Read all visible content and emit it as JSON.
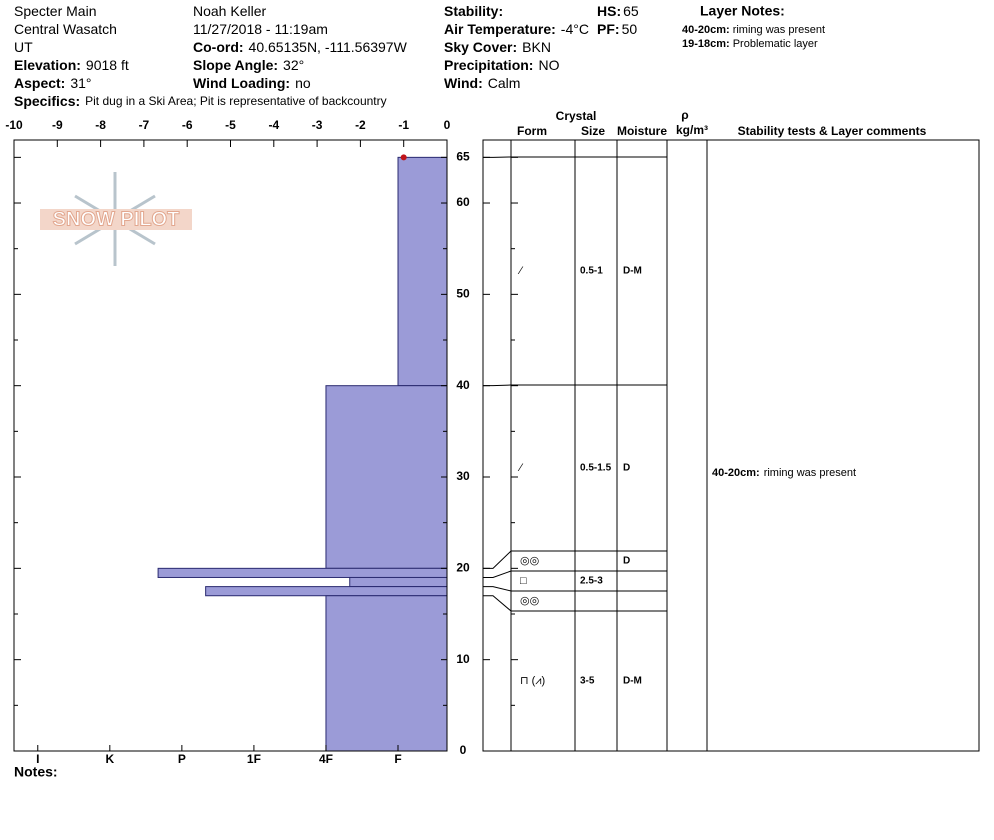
{
  "header": {
    "columns": [
      [
        {
          "value": "Specter Main"
        },
        {
          "value": "Central Wasatch"
        },
        {
          "value": "UT"
        },
        {
          "label": "Elevation:",
          "value": "9018 ft"
        },
        {
          "label": "Aspect:",
          "value": "31°"
        }
      ],
      [
        {
          "value": "Noah Keller"
        },
        {
          "value": "11/27/2018 - 11:19am"
        },
        {
          "label": "Co-ord:",
          "value": "40.65135N, -111.56397W"
        },
        {
          "label": "Slope Angle:",
          "value": "32°"
        },
        {
          "label": "Wind Loading:",
          "value": "no"
        }
      ],
      [
        {
          "label": "Stability:"
        },
        {
          "label": "Air Temperature:",
          "value": "-4°C"
        },
        {
          "label": "Sky Cover:",
          "value": "BKN"
        },
        {
          "label": "Precipitation:",
          "value": "NO"
        },
        {
          "label": "Wind:",
          "value": "Calm"
        }
      ],
      [
        {
          "label": "HS:",
          "value": "65"
        },
        {
          "label": "PF:",
          "value": "50"
        }
      ]
    ],
    "specifics": {
      "label": "Specifics:",
      "value": "Pit dug in a Ski Area; Pit is representative of backcountry"
    },
    "layer_notes": {
      "title": "Layer Notes:",
      "items": [
        {
          "label": "40-20cm:",
          "value": "riming was present"
        },
        {
          "label": "19-18cm:",
          "value": "Problematic layer"
        }
      ]
    }
  },
  "logo": "SNOW PILOT",
  "chart_data": {
    "type": "hardness-profile",
    "ylim": [
      0,
      66.9
    ],
    "yticks": [
      0,
      10,
      20,
      30,
      40,
      50,
      60,
      65
    ],
    "minor_yticks": [
      5,
      15,
      25,
      35,
      45,
      55
    ],
    "xlim": [
      6.33,
      0.32
    ],
    "xticks": [
      {
        "value": 6,
        "label": "I"
      },
      {
        "value": 5,
        "label": "K"
      },
      {
        "value": 4,
        "label": "P"
      },
      {
        "value": 3,
        "label": "1F"
      },
      {
        "value": 2,
        "label": "4F"
      },
      {
        "value": 1,
        "label": "F"
      }
    ],
    "layers": {
      "top": [
        65,
        40,
        20,
        19,
        18,
        17
      ],
      "bottom": [
        40,
        20,
        19,
        18,
        17,
        0
      ],
      "values": [
        1,
        2,
        4.33,
        1.67,
        3.67,
        2
      ]
    },
    "color": "#9b9bd7",
    "temperature": {
      "depth": [
        65
      ],
      "values": [
        -1
      ],
      "color": "#c0141a",
      "xlim": [
        -10,
        0
      ],
      "xticks": [
        -10,
        -9,
        -8,
        -7,
        -6,
        -5,
        -4,
        -3,
        -2,
        -1,
        0
      ]
    },
    "notes_label": "Notes:"
  },
  "table": {
    "header": {
      "crystal": "Crystal",
      "form": "Form",
      "size": "Size",
      "moisture": "Moisture",
      "rho": "ρ",
      "density_unit": "kg/m³",
      "comments": "Stability tests & Layer comments"
    },
    "rows": [
      {
        "form": "⁄",
        "size": "0.5-1",
        "moisture": "D-M"
      },
      {
        "form": "⁄",
        "size": "0.5-1.5",
        "moisture": "D",
        "comment": {
          "label": "40-20cm:",
          "value": "riming was present"
        }
      },
      {
        "form": "◎◎",
        "moisture": "D"
      },
      {
        "form": "□",
        "size": "2.5-3"
      },
      {
        "form": "◎◎"
      },
      {
        "form": "⊓ (⩘)",
        "size": "3-5",
        "moisture": "D-M"
      }
    ]
  }
}
